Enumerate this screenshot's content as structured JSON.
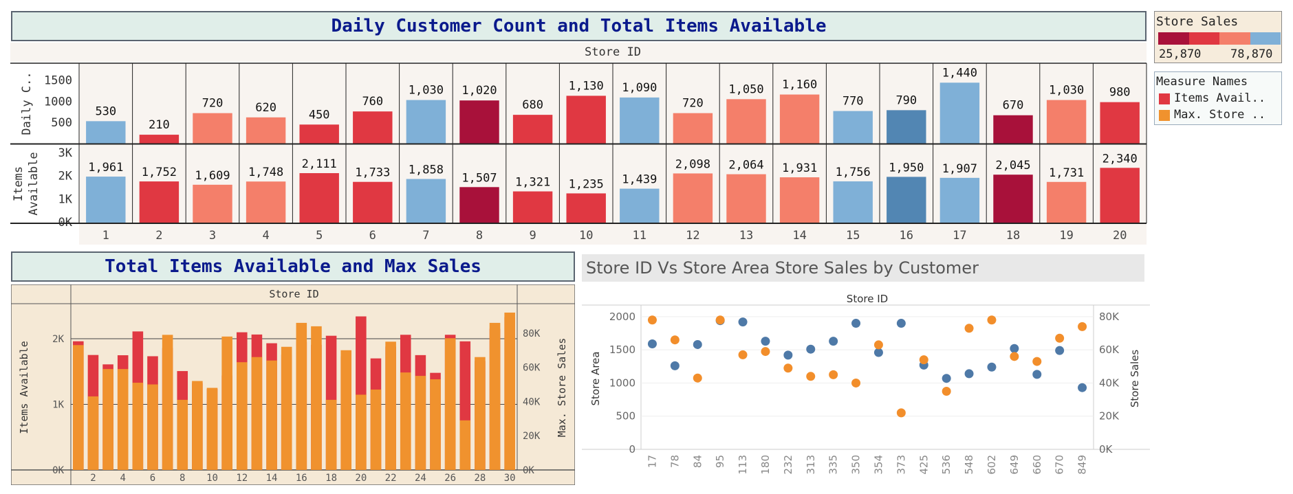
{
  "colors": {
    "dark_red": "#a8113a",
    "red": "#e03842",
    "salmon": "#f47f6a",
    "light_blue": "#7fb0d7",
    "mid_blue": "#5286b3",
    "orange": "#f0922e",
    "scatter_blue": "#4e79a7",
    "scatter_orange": "#f28e2b",
    "title_bg": "#e0eee9",
    "title_text": "#0a1a8c"
  },
  "top": {
    "title": "Daily Customer Count and Total Items Available",
    "header": "Store ID",
    "row1_label": "Daily C..",
    "row2_label": "Items Available",
    "store_ids": [
      "1",
      "2",
      "3",
      "4",
      "5",
      "6",
      "7",
      "8",
      "9",
      "10",
      "11",
      "12",
      "13",
      "14",
      "15",
      "16",
      "17",
      "18",
      "19",
      "20"
    ],
    "customers": [
      530,
      210,
      720,
      620,
      450,
      760,
      1030,
      1020,
      680,
      1130,
      1090,
      720,
      1050,
      1160,
      770,
      790,
      1440,
      670,
      1030,
      980
    ],
    "customer_labels": [
      "530",
      "210",
      "720",
      "620",
      "450",
      "760",
      "1,030",
      "1,020",
      "680",
      "1,130",
      "1,090",
      "720",
      "1,050",
      "1,160",
      "770",
      "790",
      "1,440",
      "670",
      "1,030",
      "980"
    ],
    "items": [
      1961,
      1752,
      1609,
      1748,
      2111,
      1733,
      1858,
      1507,
      1321,
      1235,
      1439,
      2098,
      2064,
      1931,
      1756,
      1950,
      1907,
      2045,
      1731,
      2340
    ],
    "item_labels": [
      "1,961",
      "1,752",
      "1,609",
      "1,748",
      "2,111",
      "1,733",
      "1,858",
      "1,507",
      "1,321",
      "1,235",
      "1,439",
      "2,098",
      "2,064",
      "1,931",
      "1,756",
      "1,950",
      "1,907",
      "2,045",
      "1,731",
      "2,340"
    ],
    "bar_colors": [
      "light_blue",
      "red",
      "salmon",
      "salmon",
      "red",
      "red",
      "light_blue",
      "dark_red",
      "red",
      "red",
      "light_blue",
      "salmon",
      "salmon",
      "salmon",
      "light_blue",
      "mid_blue",
      "light_blue",
      "dark_red",
      "salmon",
      "red"
    ],
    "row1_ticks": [
      "500",
      "1000",
      "1500"
    ],
    "row1_tick_values": [
      500,
      1000,
      1500
    ],
    "row1_max": 1900,
    "row2_ticks": [
      "0K",
      "1K",
      "2K",
      "3K"
    ],
    "row2_tick_values": [
      0,
      1000,
      2000,
      3000
    ],
    "row2_max": 3300
  },
  "legend_sales": {
    "title": "Store Sales",
    "min": "25,870",
    "max": "78,870"
  },
  "legend_measures": {
    "title": "Measure Names",
    "items": [
      {
        "label": "Items Avail..",
        "color": "#e03842"
      },
      {
        "label": "Max. Store ..",
        "color": "#f0922e"
      }
    ]
  },
  "bottom_left": {
    "title": "Total Items Available and Max Sales",
    "header": "Store ID",
    "ylabel_left": "Items Available",
    "ylabel_right": "Max. Store Sales",
    "left_ticks": [
      "0K",
      "1K",
      "2K"
    ],
    "left_tick_values": [
      0,
      1000,
      2000
    ],
    "right_ticks": [
      "0K",
      "20K",
      "40K",
      "60K",
      "80K"
    ],
    "right_tick_values": [
      0,
      20000,
      40000,
      60000,
      80000
    ],
    "x_ticks": [
      "2",
      "4",
      "6",
      "8",
      "10",
      "12",
      "14",
      "16",
      "18",
      "20",
      "22",
      "24",
      "26",
      "28",
      "30"
    ]
  },
  "chart_data": [
    {
      "type": "bar",
      "title": "Daily Customer Count and Total Items Available",
      "categories": [
        "1",
        "2",
        "3",
        "4",
        "5",
        "6",
        "7",
        "8",
        "9",
        "10",
        "11",
        "12",
        "13",
        "14",
        "15",
        "16",
        "17",
        "18",
        "19",
        "20"
      ],
      "series": [
        {
          "name": "Daily C..",
          "values": [
            530,
            210,
            720,
            620,
            450,
            760,
            1030,
            1020,
            680,
            1130,
            1090,
            720,
            1050,
            1160,
            770,
            790,
            1440,
            670,
            1030,
            980
          ]
        },
        {
          "name": "Items Available",
          "values": [
            1961,
            1752,
            1609,
            1748,
            2111,
            1733,
            1858,
            1507,
            1321,
            1235,
            1439,
            2098,
            2064,
            1931,
            1756,
            1950,
            1907,
            2045,
            1731,
            2340
          ]
        }
      ],
      "xlabel": "Store ID"
    },
    {
      "type": "bar",
      "title": "Total Items Available and Max Sales",
      "categories": [
        "1",
        "2",
        "3",
        "4",
        "5",
        "6",
        "7",
        "8",
        "9",
        "10",
        "11",
        "12",
        "13",
        "14",
        "15",
        "16",
        "17",
        "18",
        "19",
        "20",
        "21",
        "22",
        "23",
        "24",
        "25",
        "26",
        "27",
        "28",
        "29",
        "30"
      ],
      "series": [
        {
          "name": "Items Avail..",
          "values": [
            1961,
            1752,
            1609,
            1748,
            2111,
            1733,
            1858,
            1507,
            1321,
            1235,
            1439,
            2098,
            2064,
            1931,
            1756,
            1950,
            1907,
            2045,
            1731,
            2340,
            1700,
            1880,
            2060,
            1750,
            1480,
            2060,
            1960,
            1660,
            2150,
            2330
          ]
        },
        {
          "name": "Max. Store ..",
          "values": [
            73000,
            43000,
            59000,
            59000,
            51000,
            50000,
            79000,
            41000,
            52000,
            48000,
            78000,
            63000,
            66000,
            64000,
            72000,
            86000,
            84000,
            41000,
            70000,
            44000,
            47000,
            75000,
            57000,
            55000,
            53000,
            77000,
            29000,
            66000,
            86000,
            92000
          ]
        }
      ],
      "xlabel": "Store ID",
      "ylabel": "Items Available",
      "ylim": [
        0,
        2400
      ]
    },
    {
      "type": "scatter",
      "title": "Store ID Vs Store Area Store Sales by Customer",
      "categories": [
        "17",
        "78",
        "84",
        "95",
        "113",
        "180",
        "232",
        "313",
        "335",
        "350",
        "354",
        "373",
        "425",
        "536",
        "548",
        "602",
        "649",
        "660",
        "670",
        "849"
      ],
      "series": [
        {
          "name": "Store Area",
          "values": [
            1590,
            1260,
            1580,
            1940,
            1920,
            1630,
            1420,
            1510,
            1630,
            1900,
            1460,
            1900,
            1270,
            1070,
            1140,
            1240,
            1520,
            1130,
            1490,
            930
          ]
        },
        {
          "name": "Store Sales",
          "values": [
            78000,
            66000,
            43000,
            78000,
            57000,
            59000,
            49000,
            44000,
            45000,
            40000,
            63000,
            22000,
            54000,
            35000,
            73000,
            78000,
            56000,
            53000,
            67000,
            74000
          ]
        }
      ],
      "xlabel": "Store ID",
      "ylabel": "Store Area",
      "ylim": [
        0,
        2000
      ]
    }
  ],
  "scatter": {
    "title": "Store ID Vs Store Area Store Sales by Customer",
    "header": "Store ID",
    "ylabel_left": "Store Area",
    "ylabel_right": "Store Sales",
    "left_ticks": [
      "0",
      "500",
      "1000",
      "1500",
      "2000"
    ],
    "left_tick_values": [
      0,
      500,
      1000,
      1500,
      2000
    ],
    "right_ticks": [
      "0K",
      "20K",
      "40K",
      "60K",
      "80K"
    ],
    "right_tick_values": [
      0,
      20000,
      40000,
      60000,
      80000
    ]
  }
}
